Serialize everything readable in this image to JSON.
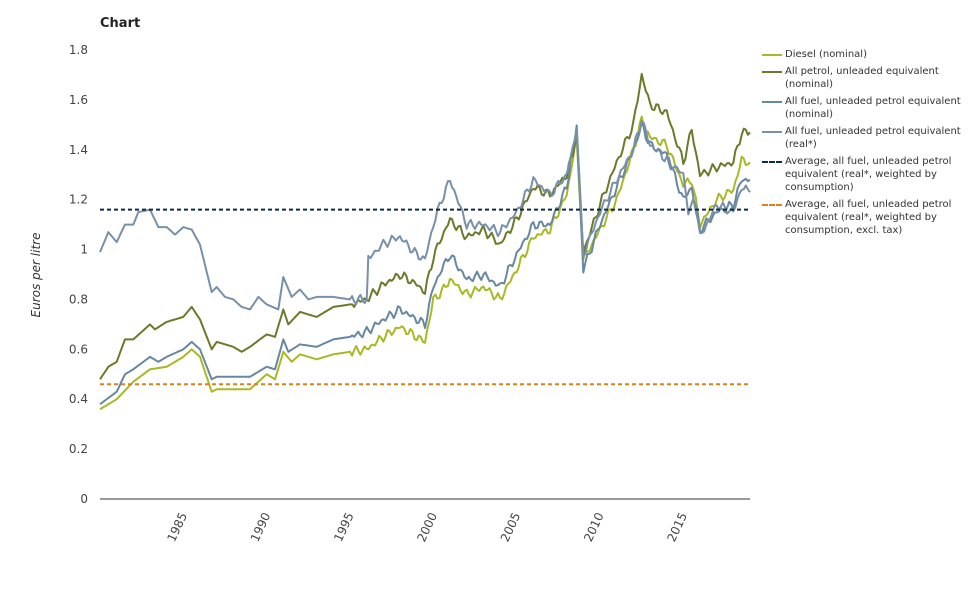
{
  "title": "Chart",
  "chart_data": {
    "type": "line",
    "title": "Chart",
    "xlabel": "",
    "ylabel": "Euros per litre",
    "xlim": [
      1980,
      2019
    ],
    "ylim": [
      0,
      1.8
    ],
    "yticks": [
      "0",
      "0.2",
      "0.4",
      "0.6",
      "0.8",
      "1",
      "1.2",
      "1.4",
      "1.6",
      "1.8"
    ],
    "ytick_values": [
      0,
      0.2,
      0.4,
      0.6,
      0.8,
      1,
      1.2,
      1.4,
      1.6,
      1.8
    ],
    "xticks": [
      "1985",
      "1990",
      "1995",
      "2000",
      "2005",
      "2010",
      "2015"
    ],
    "xtick_values": [
      1985,
      1990,
      1995,
      2000,
      2005,
      2010,
      2015
    ],
    "grid": false,
    "legend_position": "right",
    "series": [
      {
        "name": "Diesel (nominal)",
        "color": "#a9b925",
        "style": "solid",
        "x": [
          1980,
          1981,
          1982,
          1983,
          1984,
          1985,
          1985.5,
          1986,
          1986.7,
          1987,
          1988,
          1989,
          1990,
          1990.5,
          1991,
          1991.5,
          1992,
          1993,
          1994,
          1995,
          1996,
          1997,
          1998,
          1999,
          1999.5,
          2000,
          2000.5,
          2001,
          2002,
          2003,
          2004,
          2005,
          2006,
          2007,
          2008,
          2008.6,
          2009,
          2010,
          2011,
          2012,
          2012.5,
          2013,
          2014,
          2015,
          2015.5,
          2016,
          2017,
          2018,
          2018.5,
          2019
        ],
        "y": [
          0.36,
          0.4,
          0.47,
          0.52,
          0.53,
          0.57,
          0.6,
          0.57,
          0.43,
          0.44,
          0.44,
          0.44,
          0.5,
          0.48,
          0.59,
          0.55,
          0.58,
          0.56,
          0.58,
          0.59,
          0.6,
          0.65,
          0.69,
          0.65,
          0.63,
          0.8,
          0.83,
          0.88,
          0.82,
          0.85,
          0.8,
          0.92,
          1.05,
          1.08,
          1.22,
          1.45,
          0.96,
          1.08,
          1.2,
          1.4,
          1.52,
          1.45,
          1.42,
          1.26,
          1.28,
          1.1,
          1.2,
          1.24,
          1.36,
          1.35
        ]
      },
      {
        "name": "All petrol, unleaded equivalent (nominal)",
        "color": "#6b7a2a",
        "style": "solid",
        "x": [
          1980,
          1980.5,
          1981,
          1981.5,
          1982,
          1983,
          1983.3,
          1984,
          1985,
          1985.5,
          1986,
          1986.7,
          1987,
          1988,
          1988.5,
          1989,
          1990,
          1990.5,
          1991,
          1991.3,
          1992,
          1993,
          1994,
          1995,
          1996,
          1997,
          1998,
          1999,
          1999.5,
          2000,
          2000.5,
          2001,
          2002,
          2003,
          2004,
          2005,
          2006,
          2007,
          2008,
          2008.6,
          2009,
          2010,
          2011,
          2012,
          2012.5,
          2013,
          2014,
          2015,
          2015.5,
          2016,
          2017,
          2018,
          2018.5,
          2019
        ],
        "y": [
          0.48,
          0.53,
          0.55,
          0.64,
          0.64,
          0.7,
          0.68,
          0.71,
          0.73,
          0.77,
          0.72,
          0.6,
          0.63,
          0.61,
          0.59,
          0.61,
          0.66,
          0.65,
          0.76,
          0.7,
          0.75,
          0.73,
          0.77,
          0.78,
          0.8,
          0.86,
          0.9,
          0.86,
          0.83,
          0.97,
          1.05,
          1.12,
          1.05,
          1.08,
          1.02,
          1.12,
          1.25,
          1.22,
          1.3,
          1.45,
          0.99,
          1.18,
          1.35,
          1.5,
          1.7,
          1.58,
          1.55,
          1.35,
          1.48,
          1.3,
          1.33,
          1.35,
          1.47,
          1.47
        ]
      },
      {
        "name": "All fuel, unleaded petrol equivalent (nominal)",
        "color": "#6887a0",
        "style": "solid",
        "x": [
          1980,
          1981,
          1981.5,
          1982,
          1983,
          1983.5,
          1984,
          1985,
          1985.5,
          1986,
          1986.7,
          1987,
          1988,
          1989,
          1990,
          1990.5,
          1991,
          1991.3,
          1992,
          1993,
          1994,
          1995,
          1996,
          1997,
          1998,
          1999,
          1999.5,
          2000,
          2000.5,
          2001,
          2002,
          2003,
          2004,
          2005,
          2006,
          2007,
          2008,
          2008.6,
          2009,
          2010,
          2011,
          2012,
          2012.5,
          2013,
          2014,
          2015,
          2015.5,
          2016,
          2017,
          2018,
          2018.5,
          2019
        ],
        "y": [
          0.38,
          0.43,
          0.5,
          0.52,
          0.57,
          0.55,
          0.57,
          0.6,
          0.63,
          0.6,
          0.48,
          0.49,
          0.49,
          0.49,
          0.53,
          0.52,
          0.64,
          0.59,
          0.62,
          0.61,
          0.64,
          0.65,
          0.67,
          0.72,
          0.76,
          0.72,
          0.7,
          0.85,
          0.92,
          0.98,
          0.88,
          0.9,
          0.85,
          0.98,
          1.1,
          1.1,
          1.25,
          1.5,
          0.92,
          1.1,
          1.25,
          1.4,
          1.5,
          1.42,
          1.38,
          1.2,
          1.25,
          1.08,
          1.15,
          1.18,
          1.28,
          1.28
        ]
      },
      {
        "name": "All fuel, unleaded petrol equivalent (real*)",
        "color": "#7890a8",
        "style": "solid",
        "x": [
          1980,
          1980.5,
          1981,
          1981.5,
          1982,
          1982.3,
          1983,
          1983.5,
          1984,
          1984.5,
          1985,
          1985.5,
          1986,
          1986.7,
          1987,
          1987.5,
          1988,
          1988.5,
          1989,
          1989.5,
          1990,
          1990.7,
          1991,
          1991.5,
          1992,
          1992.5,
          1993,
          1994,
          1995,
          1996,
          1996.1,
          1997,
          1997.5,
          1998,
          1999,
          1999.5,
          2000,
          2000.5,
          2001,
          2002,
          2003,
          2004,
          2005,
          2006,
          2007,
          2008,
          2008.6,
          2009,
          2010,
          2011,
          2012,
          2012.5,
          2013,
          2014,
          2015,
          2015.3,
          2015.6,
          2016,
          2017,
          2018,
          2018.5,
          2019
        ],
        "y": [
          0.99,
          1.07,
          1.03,
          1.1,
          1.1,
          1.15,
          1.16,
          1.09,
          1.09,
          1.06,
          1.09,
          1.08,
          1.02,
          0.83,
          0.85,
          0.81,
          0.8,
          0.77,
          0.76,
          0.81,
          0.78,
          0.76,
          0.89,
          0.81,
          0.84,
          0.8,
          0.81,
          0.81,
          0.8,
          0.8,
          0.97,
          1.02,
          1.04,
          1.05,
          0.98,
          0.96,
          1.1,
          1.2,
          1.28,
          1.1,
          1.1,
          1.07,
          1.15,
          1.28,
          1.22,
          1.3,
          1.48,
          0.98,
          1.15,
          1.28,
          1.4,
          1.52,
          1.42,
          1.36,
          1.3,
          1.13,
          1.22,
          1.05,
          1.18,
          1.15,
          1.25,
          1.23
        ]
      },
      {
        "name": "Average, all fuel, unleaded petrol equivalent (real*, weighted by consumption)",
        "color": "#0c2a4a",
        "style": "dashed",
        "constant": 1.16
      },
      {
        "name": "Average, all fuel, unleaded petrol equivalent (real*, weighted by consumption, excl. tax)",
        "color": "#d9821a",
        "style": "dashed",
        "constant": 0.46
      }
    ]
  }
}
